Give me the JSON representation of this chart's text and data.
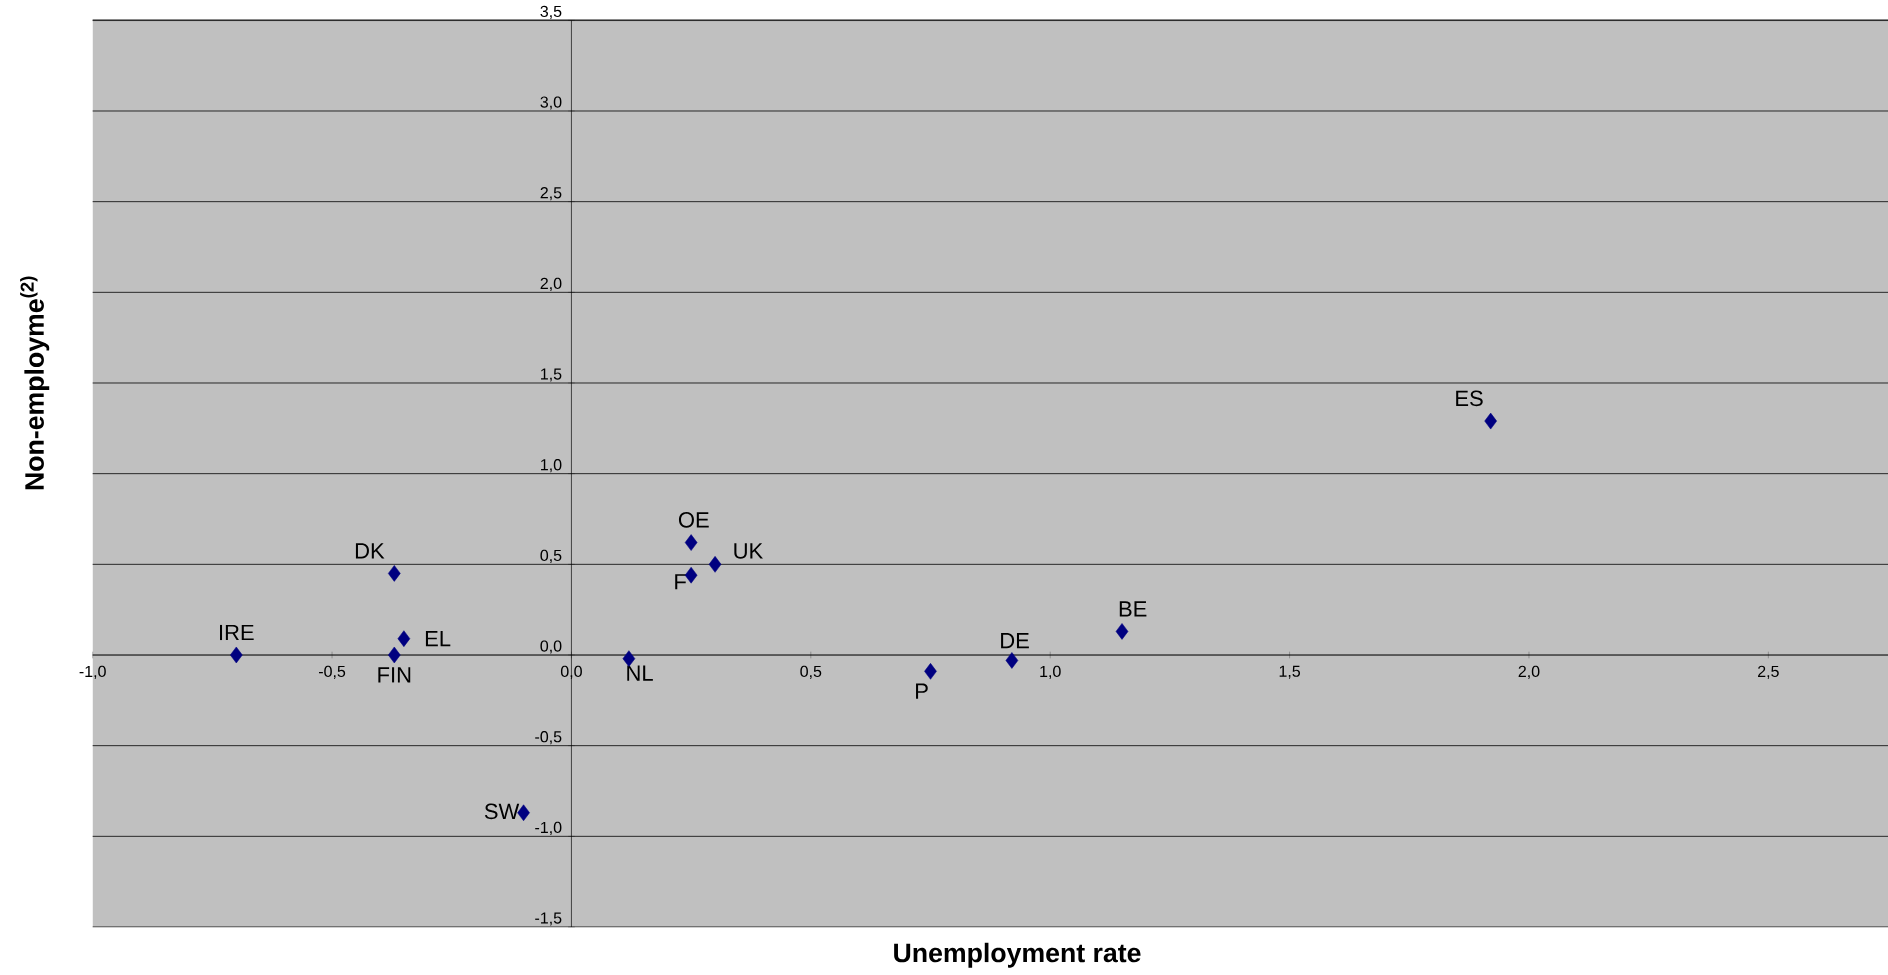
{
  "chart_data": {
    "type": "scatter",
    "xlabel": "Unemployment rate",
    "ylabel": "Non-employme$^{(2)}$",
    "x": [
      -0.7,
      -0.37,
      -0.37,
      -0.35,
      -0.1,
      0.12,
      0.25,
      0.25,
      0.3,
      0.75,
      0.92,
      1.15,
      1.92
    ],
    "values": [
      0.0,
      0.45,
      0.0,
      0.09,
      -0.87,
      -0.02,
      0.62,
      0.44,
      0.5,
      -0.09,
      -0.03,
      0.13,
      1.29
    ],
    "color": "#000080",
    "marker": "diamond",
    "annotations": [
      {
        "text": "IRE",
        "x": -0.7,
        "y": 0.0
      },
      {
        "text": "DK",
        "x": -0.37,
        "y": 0.45
      },
      {
        "text": "FIN",
        "x": -0.37,
        "y": 0.0
      },
      {
        "text": "EL",
        "x": -0.35,
        "y": 0.09
      },
      {
        "text": "SW",
        "x": -0.1,
        "y": -0.87
      },
      {
        "text": "NL",
        "x": 0.12,
        "y": -0.02
      },
      {
        "text": "OE",
        "x": 0.25,
        "y": 0.62
      },
      {
        "text": "F",
        "x": 0.25,
        "y": 0.44
      },
      {
        "text": "UK",
        "x": 0.3,
        "y": 0.5
      },
      {
        "text": "P",
        "x": 0.75,
        "y": -0.09
      },
      {
        "text": "DE",
        "x": 0.92,
        "y": -0.03
      },
      {
        "text": "BE",
        "x": 1.15,
        "y": 0.13
      },
      {
        "text": "ES",
        "x": 1.92,
        "y": 1.29
      }
    ],
    "xlim": [
      -1.0,
      2.75
    ],
    "ylim": [
      -1.5,
      3.5
    ],
    "xticks": [
      {
        "value": -1.0,
        "label": "-1,0"
      },
      {
        "value": -0.5,
        "label": "-0,5"
      },
      {
        "value": 0.0,
        "label": "0,0"
      },
      {
        "value": 0.5,
        "label": "0,5"
      },
      {
        "value": 1.0,
        "label": "1,0"
      },
      {
        "value": 1.5,
        "label": "1,5"
      },
      {
        "value": 2.0,
        "label": "2,0"
      },
      {
        "value": 2.5,
        "label": "2,5"
      }
    ],
    "yticks": [
      {
        "value": -1.5,
        "label": "-1,5"
      },
      {
        "value": -1.0,
        "label": "-1,0"
      },
      {
        "value": -0.5,
        "label": "-0,5"
      },
      {
        "value": 0.0,
        "label": "0,0"
      },
      {
        "value": 0.5,
        "label": "0,5"
      },
      {
        "value": 1.0,
        "label": "1,0"
      },
      {
        "value": 1.5,
        "label": "1,5"
      },
      {
        "value": 2.0,
        "label": "2,0"
      },
      {
        "value": 2.5,
        "label": "2,5"
      },
      {
        "value": 3.0,
        "label": "3,0"
      },
      {
        "value": 3.5,
        "label": "3,5"
      }
    ],
    "grid": "y"
  }
}
